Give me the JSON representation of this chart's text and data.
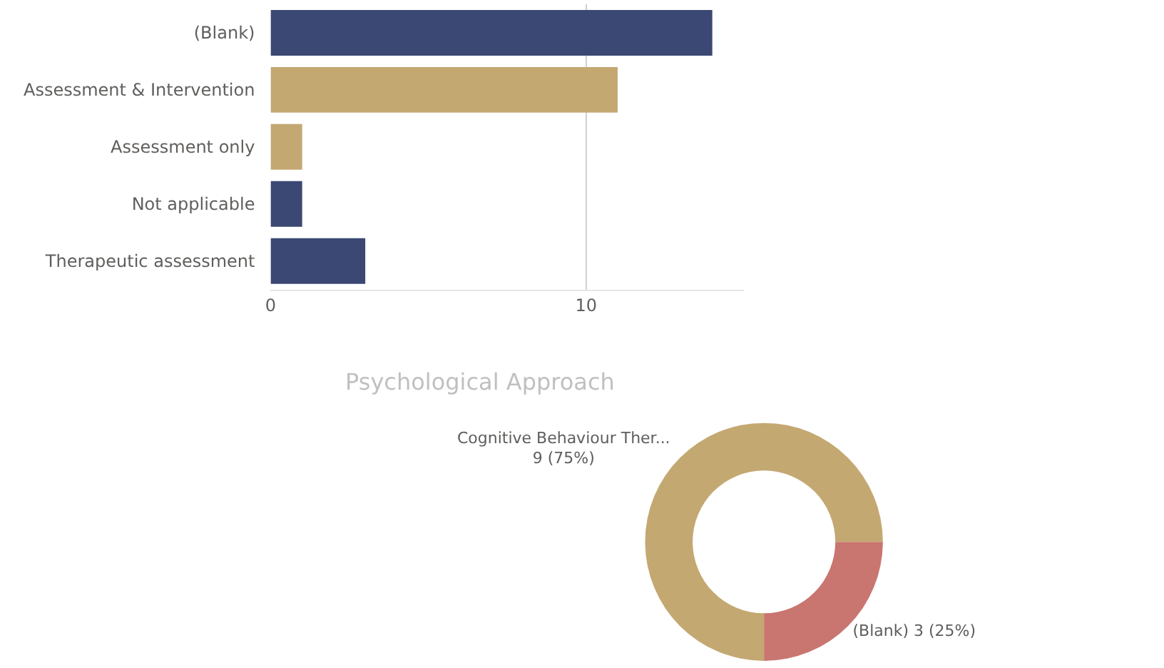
{
  "chart_data": [
    {
      "type": "bar",
      "orientation": "horizontal",
      "categories": [
        "(Blank)",
        "Assessment & Intervention",
        "Assessment only",
        "Not applicable",
        "Therapeutic assessment"
      ],
      "values": [
        14,
        11,
        1,
        1,
        3
      ],
      "colors": [
        "#3b4873",
        "#c4a872",
        "#c4a872",
        "#3b4873",
        "#3b4873"
      ],
      "xlim": [
        0,
        15
      ],
      "xticks": [
        0,
        10
      ],
      "grid": "x"
    },
    {
      "type": "donut",
      "title": "Psychological Approach",
      "categories": [
        "(Blank)",
        "Cognitive Behaviour Ther..."
      ],
      "values": [
        3,
        9
      ],
      "value_labels": [
        "3 (25%)",
        "9 (75%)"
      ],
      "colors": [
        "#c97570",
        "#c4a872"
      ]
    }
  ]
}
